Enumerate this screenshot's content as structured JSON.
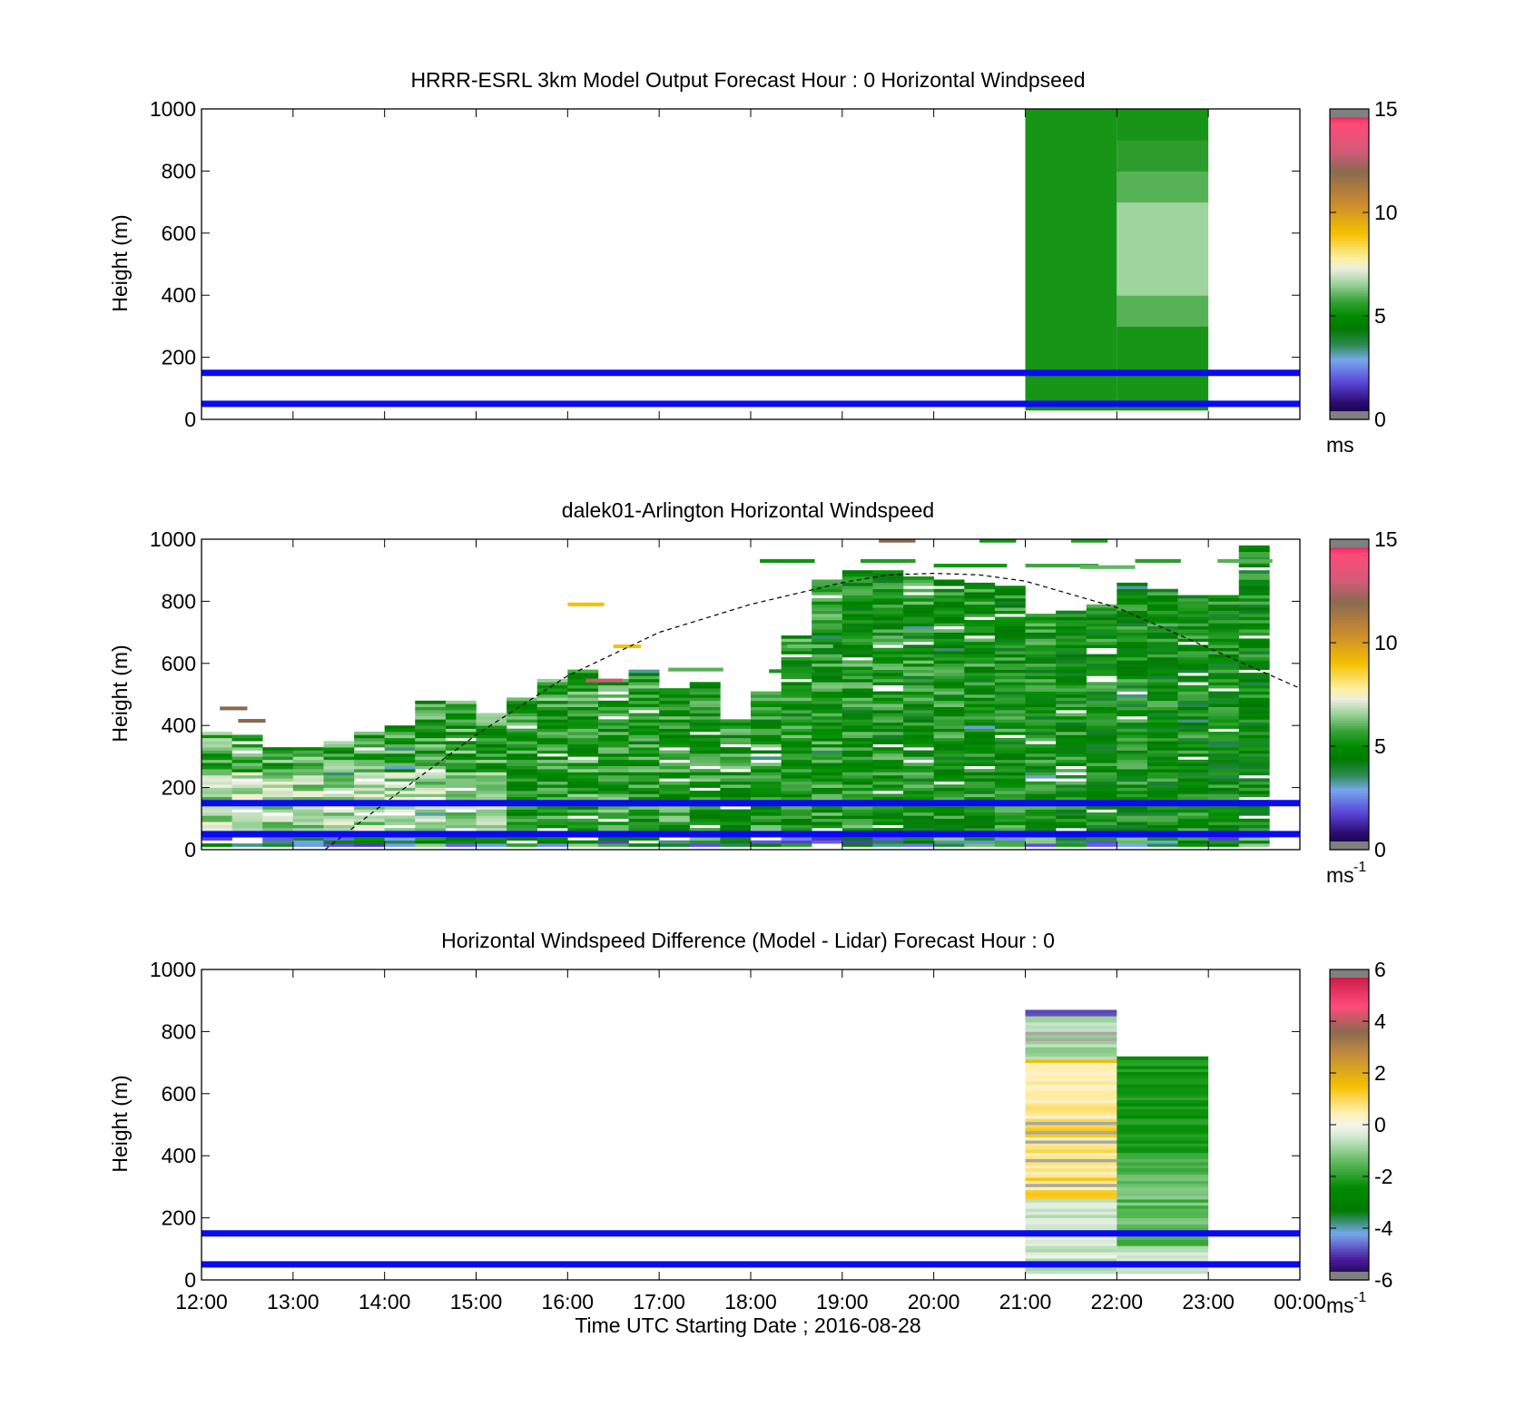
{
  "chart_data": [
    {
      "type": "heatmap",
      "title": "HRRR-ESRL 3km Model Output   Forecast Hour : 0 Horizontal Windpseed",
      "ylabel": "Height (m)",
      "xlim": [
        12,
        24
      ],
      "ylim": [
        0,
        1000
      ],
      "x_tick_values": [
        12,
        13,
        14,
        15,
        16,
        17,
        18,
        19,
        20,
        21,
        22,
        23,
        24
      ],
      "y_ticks": [
        "0",
        "200",
        "400",
        "600",
        "800",
        "1000"
      ],
      "colorbar": {
        "ticks": [
          "0",
          "5",
          "10",
          "15"
        ],
        "range": [
          0,
          15
        ],
        "unit": "ms",
        "unit_sup": ""
      },
      "reference_lines_m": [
        50,
        150
      ],
      "columns": [
        {
          "x": [
            21,
            22
          ],
          "cells": [
            [
              30,
              1000,
              5.3
            ]
          ]
        },
        {
          "x": [
            22,
            23
          ],
          "cells": [
            [
              30,
              300,
              5.3
            ],
            [
              300,
              400,
              6.0
            ],
            [
              400,
              700,
              6.6
            ],
            [
              700,
              800,
              6.0
            ],
            [
              800,
              900,
              5.6
            ],
            [
              900,
              1000,
              5.3
            ]
          ]
        }
      ]
    },
    {
      "type": "heatmap",
      "title": "dalek01-Arlington  Horizontal Windspeed",
      "ylabel": "Height (m)",
      "xlim": [
        12,
        24
      ],
      "ylim": [
        0,
        1000
      ],
      "x_tick_values": [
        12,
        13,
        14,
        15,
        16,
        17,
        18,
        19,
        20,
        21,
        22,
        23,
        24
      ],
      "y_ticks": [
        "0",
        "200",
        "400",
        "600",
        "800",
        "1000"
      ],
      "colorbar": {
        "ticks": [
          "0",
          "5",
          "10",
          "15"
        ],
        "range": [
          0,
          15
        ],
        "unit": "ms",
        "unit_sup": "-1"
      },
      "reference_lines_m": [
        50,
        150
      ],
      "dashed_curve": {
        "x": [
          13.35,
          14,
          15,
          16,
          17,
          18,
          19,
          19.5,
          20,
          20.5,
          21,
          22,
          23,
          24
        ],
        "y": [
          0,
          150,
          370,
          560,
          700,
          790,
          860,
          885,
          890,
          885,
          865,
          780,
          650,
          520
        ]
      },
      "column_tops_m": [
        380,
        370,
        330,
        330,
        350,
        380,
        400,
        480,
        480,
        440,
        490,
        550,
        580,
        550,
        580,
        520,
        540,
        420,
        510,
        690,
        870,
        900,
        900,
        880,
        870,
        860,
        850,
        760,
        770,
        790,
        860,
        840,
        820,
        820,
        980
      ]
    },
    {
      "type": "heatmap",
      "title": "Horizontal Windspeed Difference (Model - Lidar) Forecast Hour : 0",
      "xlabel": "Time UTC  Starting Date ; 2016-08-28",
      "ylabel": "Height (m)",
      "xlim": [
        12,
        24
      ],
      "ylim": [
        0,
        1000
      ],
      "x_ticks": [
        "12:00",
        "13:00",
        "14:00",
        "15:00",
        "16:00",
        "17:00",
        "18:00",
        "19:00",
        "20:00",
        "21:00",
        "22:00",
        "23:00",
        "00:00"
      ],
      "x_tick_values": [
        12,
        13,
        14,
        15,
        16,
        17,
        18,
        19,
        20,
        21,
        22,
        23,
        24
      ],
      "y_ticks": [
        "0",
        "200",
        "400",
        "600",
        "800",
        "1000"
      ],
      "colorbar": {
        "ticks": [
          "-6",
          "-4",
          "-2",
          "0",
          "2",
          "4",
          "6"
        ],
        "range": [
          -6,
          6
        ],
        "unit": "ms",
        "unit_sup": "-1"
      },
      "reference_lines_m": [
        50,
        150
      ],
      "columns": [
        {
          "x": [
            21,
            22
          ],
          "top_m": 865
        },
        {
          "x": [
            22,
            23
          ],
          "top_m": 720
        }
      ]
    }
  ]
}
